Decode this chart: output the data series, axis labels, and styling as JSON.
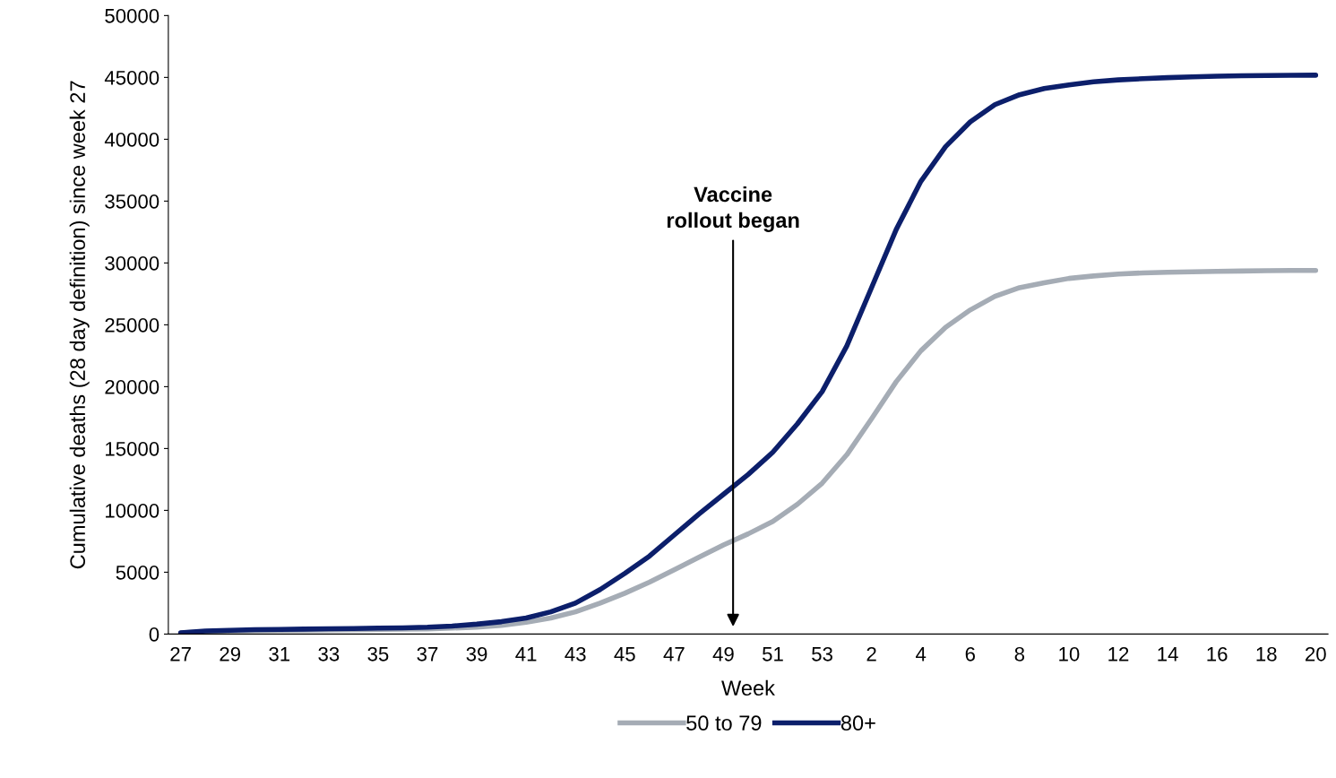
{
  "chart_data": {
    "type": "line",
    "xlabel": "Week",
    "ylabel": "Cumulative deaths (28 day definition) since week 27",
    "categories": [
      "27",
      null,
      "29",
      null,
      "31",
      null,
      "33",
      null,
      "35",
      null,
      "37",
      null,
      "39",
      null,
      "41",
      null,
      "43",
      null,
      "45",
      null,
      "47",
      null,
      "49",
      null,
      "51",
      null,
      "53",
      null,
      "2",
      null,
      "4",
      null,
      "6",
      null,
      "8",
      null,
      "10",
      null,
      "12",
      null,
      "14",
      null,
      "16",
      null,
      "18",
      null,
      "20"
    ],
    "series": [
      {
        "name": "50 to 79",
        "color": "#a5acb5",
        "values": [
          100,
          200,
          250,
          280,
          300,
          320,
          340,
          360,
          380,
          400,
          420,
          480,
          560,
          700,
          950,
          1300,
          1800,
          2500,
          3300,
          4200,
          5200,
          6200,
          7200,
          8100,
          9100,
          10500,
          12200,
          14500,
          17400,
          20400,
          22900,
          24800,
          26200,
          27300,
          28000,
          28400,
          28750,
          28950,
          29100,
          29200,
          29250,
          29290,
          29320,
          29350,
          29370,
          29390,
          29400
        ]
      },
      {
        "name": "80+",
        "color": "#0c1f6b",
        "values": [
          100,
          250,
          300,
          350,
          380,
          400,
          430,
          450,
          480,
          500,
          550,
          650,
          800,
          1000,
          1300,
          1800,
          2500,
          3600,
          4900,
          6300,
          8000,
          9700,
          11300,
          12900,
          14700,
          17000,
          19600,
          23300,
          28000,
          32700,
          36600,
          39400,
          41400,
          42800,
          43600,
          44100,
          44400,
          44650,
          44800,
          44900,
          44980,
          45050,
          45100,
          45130,
          45150,
          45170,
          45180
        ]
      }
    ],
    "ylim": [
      0,
      50000
    ],
    "yticks": [
      0,
      5000,
      10000,
      15000,
      20000,
      25000,
      30000,
      35000,
      40000,
      45000,
      50000
    ],
    "annotations": [
      "Vaccine\nrollout began"
    ],
    "legend": "bottom",
    "grid": false,
    "marker": "none",
    "line_style": "solid"
  }
}
